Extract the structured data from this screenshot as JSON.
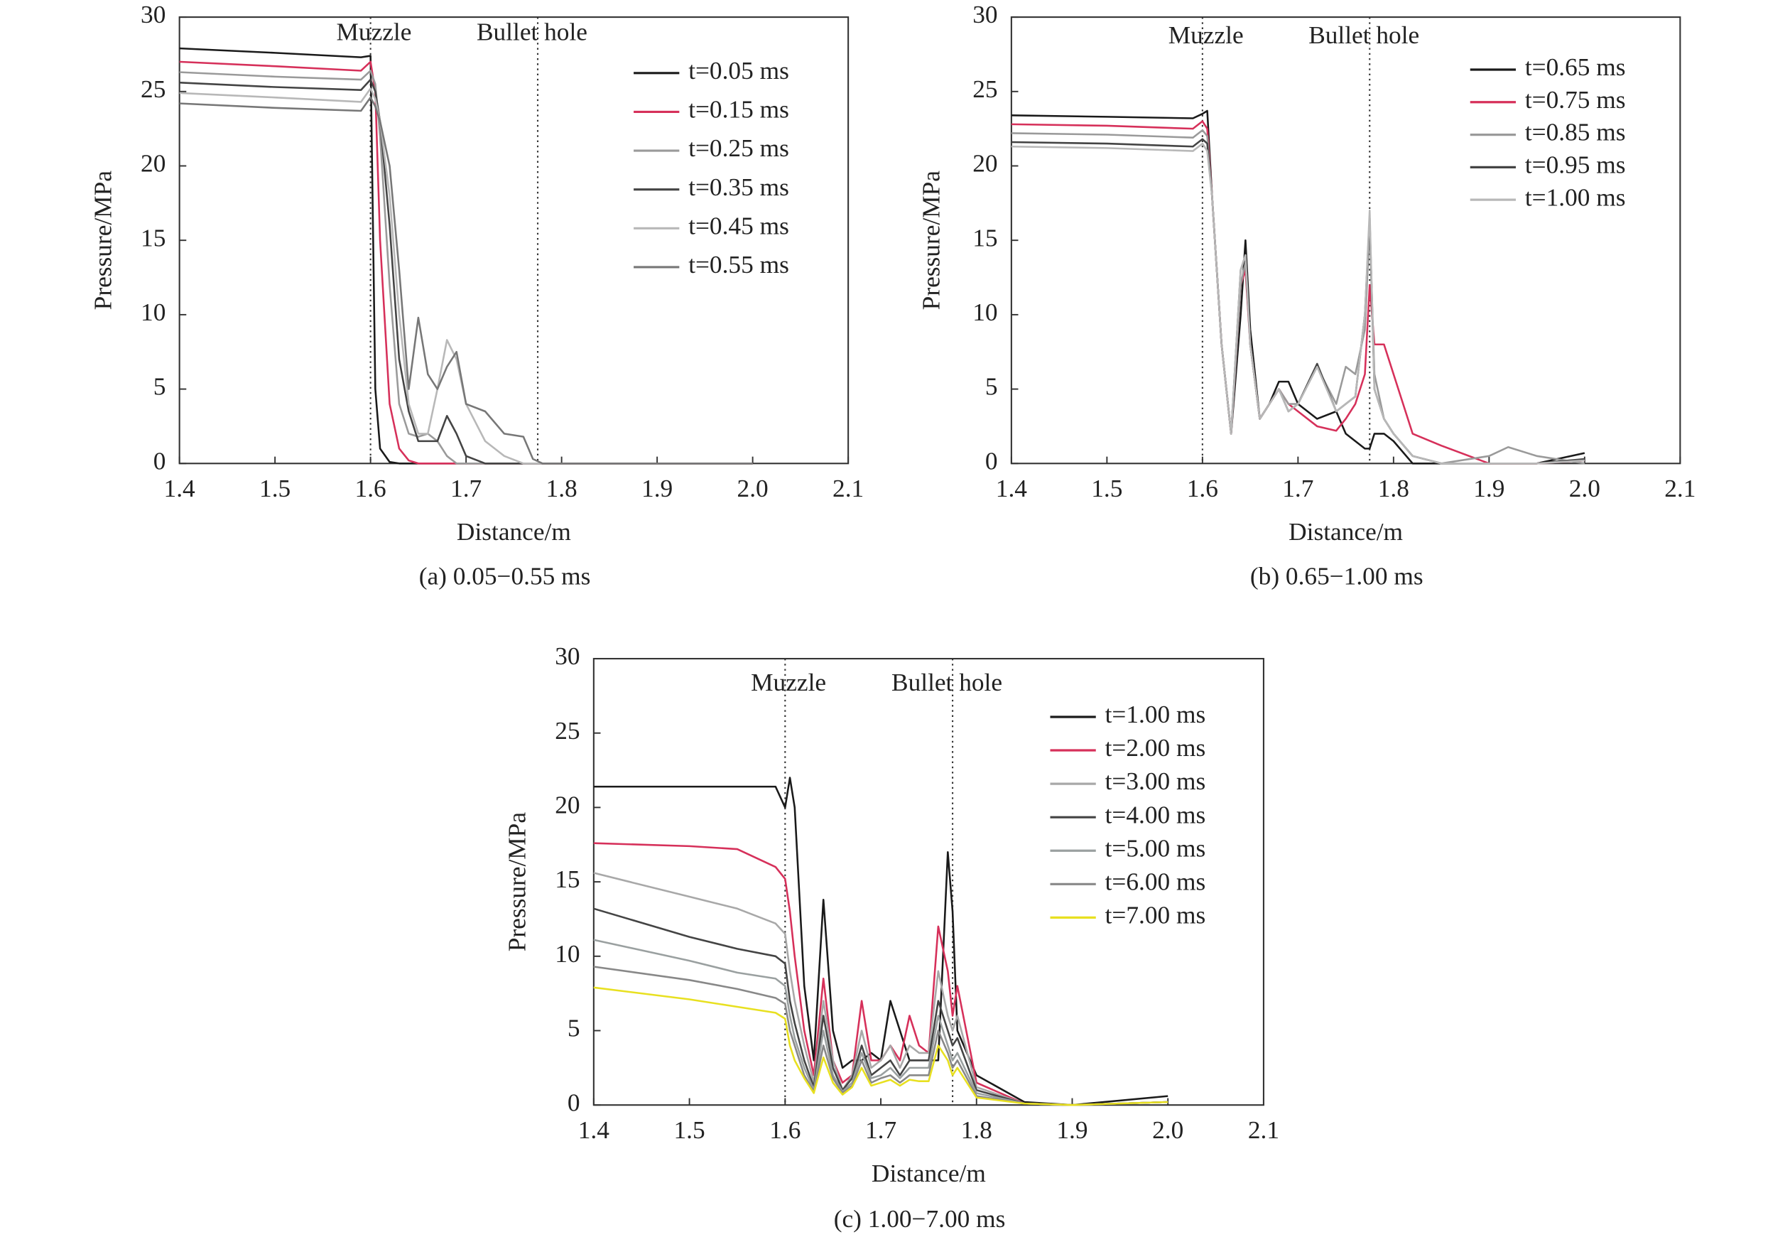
{
  "chart_data": [
    {
      "type": "line",
      "title": "(a) 0.05−0.55 ms",
      "xlabel": "Distance/m",
      "ylabel": "Pressure/MPa",
      "annotations": [
        {
          "text": "Muzzle",
          "x": 1.6
        },
        {
          "text": "Bullet hole",
          "x": 1.775
        }
      ],
      "xlim": [
        1.4,
        2.1
      ],
      "xticks": [
        1.4,
        1.5,
        1.6,
        1.7,
        1.8,
        1.9,
        {
          "value": 2,
          "label": "2.0"
        },
        2.1
      ],
      "ylim": [
        0,
        30
      ],
      "yticks": [
        0,
        5,
        10,
        15,
        20,
        25,
        30
      ],
      "legend": "upper right",
      "x": [
        1.4,
        1.5,
        1.59,
        1.6,
        1.605,
        1.61,
        1.62,
        1.63,
        1.64,
        1.65,
        1.66,
        1.67,
        1.68,
        1.69,
        1.7,
        1.72,
        1.74,
        1.76,
        1.77,
        1.78,
        1.9,
        2.0
      ],
      "series": [
        {
          "name": "t=0.05 ms",
          "color": "#1a1a1a",
          "values": [
            27.9,
            27.6,
            27.3,
            27.4,
            5,
            1,
            0.1,
            0,
            0,
            0,
            0,
            0,
            0,
            0,
            0,
            0,
            0,
            0,
            0,
            0,
            0,
            0
          ]
        },
        {
          "name": "t=0.15 ms",
          "color": "#d6305a",
          "values": [
            27.0,
            26.7,
            26.4,
            27.0,
            25,
            15,
            4,
            1,
            0.2,
            0,
            0,
            0,
            0,
            0,
            0,
            0,
            0,
            0,
            0,
            0,
            0,
            0
          ]
        },
        {
          "name": "t=0.25 ms",
          "color": "#9a9a9a",
          "values": [
            26.3,
            26.0,
            25.8,
            26.4,
            25.5,
            22,
            12,
            4,
            2,
            1.8,
            2,
            1.5,
            0.5,
            0,
            0,
            0,
            0,
            0,
            0,
            0,
            0,
            0
          ]
        },
        {
          "name": "t=0.35 ms",
          "color": "#444444",
          "values": [
            25.6,
            25.3,
            25.1,
            25.8,
            25,
            23,
            16,
            7,
            3.5,
            1.5,
            1.5,
            1.5,
            3.2,
            2,
            0.5,
            0,
            0,
            0,
            0,
            0,
            0,
            0
          ]
        },
        {
          "name": "t=0.45 ms",
          "color": "#b8b8b8",
          "values": [
            24.9,
            24.6,
            24.3,
            25.2,
            24.5,
            23,
            18,
            10,
            4,
            2,
            2,
            5,
            8.3,
            7,
            4,
            1.5,
            0.5,
            0,
            0,
            0,
            0,
            0
          ]
        },
        {
          "name": "t=0.55 ms",
          "color": "#777777",
          "values": [
            24.2,
            23.9,
            23.7,
            24.6,
            24,
            23,
            20,
            13,
            5,
            9.8,
            6,
            5,
            6.5,
            7.5,
            4,
            3.5,
            2,
            1.8,
            0.3,
            0,
            0,
            0
          ]
        }
      ]
    },
    {
      "type": "line",
      "title": "(b) 0.65−1.00 ms",
      "xlabel": "Distance/m",
      "ylabel": "Pressure/MPa",
      "annotations": [
        {
          "text": "Muzzle",
          "x": 1.6
        },
        {
          "text": "Bullet hole",
          "x": 1.775
        }
      ],
      "xlim": [
        1.4,
        2.1
      ],
      "xticks": [
        1.4,
        1.5,
        1.6,
        1.7,
        1.8,
        1.9,
        {
          "value": 2,
          "label": "2.0"
        },
        2.1
      ],
      "ylim": [
        0,
        30
      ],
      "yticks": [
        0,
        5,
        10,
        15,
        20,
        25,
        30
      ],
      "legend": "upper right",
      "x": [
        1.4,
        1.5,
        1.59,
        1.6,
        1.605,
        1.61,
        1.62,
        1.63,
        1.64,
        1.645,
        1.65,
        1.66,
        1.67,
        1.68,
        1.69,
        1.7,
        1.72,
        1.74,
        1.75,
        1.76,
        1.77,
        1.775,
        1.78,
        1.79,
        1.8,
        1.82,
        1.85,
        1.9,
        1.92,
        1.95,
        2.0
      ],
      "series": [
        {
          "name": "t=0.65 ms",
          "color": "#1a1a1a",
          "values": [
            23.4,
            23.3,
            23.2,
            23.5,
            23.7,
            18,
            8,
            2,
            10,
            15,
            9,
            3,
            4,
            5.5,
            5.5,
            4,
            3,
            3.5,
            2,
            1.5,
            1,
            1,
            2,
            2,
            1.5,
            0,
            0,
            0,
            0,
            0,
            0.7
          ]
        },
        {
          "name": "t=0.75 ms",
          "color": "#d6305a",
          "values": [
            22.8,
            22.7,
            22.5,
            23,
            22.5,
            18,
            8,
            2,
            12,
            13,
            8,
            3,
            4,
            5,
            4,
            3.5,
            2.5,
            2.2,
            3,
            4,
            6,
            12,
            8,
            8,
            6,
            2,
            1.2,
            0,
            0,
            0,
            0.2
          ]
        },
        {
          "name": "t=0.85 ms",
          "color": "#9a9a9a",
          "values": [
            22.2,
            22.1,
            21.9,
            22.4,
            22,
            18,
            8,
            2,
            12,
            13.5,
            8,
            3,
            4,
            5,
            4,
            4,
            6.5,
            4,
            6.5,
            6,
            9,
            16,
            6,
            3,
            2,
            0.5,
            0,
            0.5,
            1.1,
            0.5,
            0
          ]
        },
        {
          "name": "t=0.95 ms",
          "color": "#444444",
          "values": [
            21.6,
            21.5,
            21.3,
            21.8,
            21.5,
            18,
            8,
            2,
            13,
            14,
            8,
            3,
            4,
            5,
            3.5,
            4,
            6.7,
            3.5,
            4,
            4.5,
            10,
            16.5,
            5,
            3,
            2,
            0.5,
            0,
            0,
            0,
            0,
            0.3
          ]
        },
        {
          "name": "t=1.00 ms",
          "color": "#b8b8b8",
          "values": [
            21.3,
            21.2,
            21,
            21.5,
            21,
            18,
            8,
            2,
            13,
            14,
            8,
            3,
            4,
            5,
            3.5,
            4,
            6.5,
            3.5,
            4,
            4.5,
            10,
            17,
            5,
            3,
            2,
            0.5,
            0,
            0,
            0,
            0,
            0.2
          ]
        }
      ]
    },
    {
      "type": "line",
      "title": "(c) 1.00−7.00 ms",
      "xlabel": "Distance/m",
      "ylabel": "Pressure/MPa",
      "annotations": [
        {
          "text": "Muzzle",
          "x": 1.6
        },
        {
          "text": "Bullet hole",
          "x": 1.775
        }
      ],
      "xlim": [
        1.4,
        2.1
      ],
      "xticks": [
        1.4,
        1.5,
        1.6,
        1.7,
        1.8,
        1.9,
        {
          "value": 2,
          "label": "2.0"
        },
        2.1
      ],
      "ylim": [
        0,
        30
      ],
      "yticks": [
        0,
        5,
        10,
        15,
        20,
        25,
        30
      ],
      "legend": "upper right",
      "x": [
        1.4,
        1.5,
        1.55,
        1.59,
        1.6,
        1.605,
        1.61,
        1.62,
        1.63,
        1.64,
        1.65,
        1.66,
        1.67,
        1.68,
        1.69,
        1.7,
        1.71,
        1.72,
        1.73,
        1.74,
        1.75,
        1.76,
        1.77,
        1.775,
        1.78,
        1.8,
        1.85,
        1.9,
        2.0
      ],
      "series": [
        {
          "name": "t=1.00 ms",
          "color": "#1a1a1a",
          "values": [
            21.4,
            21.4,
            21.4,
            21.4,
            20,
            22,
            20,
            8,
            3,
            13.8,
            5,
            2.5,
            3,
            3,
            3.5,
            3,
            7,
            5,
            3,
            3,
            3,
            3,
            17,
            13,
            5,
            2,
            0.2,
            0,
            0.6
          ]
        },
        {
          "name": "t=2.00 ms",
          "color": "#d6305a",
          "values": [
            17.6,
            17.4,
            17.2,
            16,
            15.2,
            13,
            10,
            5,
            2,
            8.5,
            3,
            1.5,
            2,
            7,
            3,
            3,
            4,
            3,
            6,
            4,
            3.5,
            12,
            9,
            6,
            8,
            1.5,
            0.1,
            0,
            0.2
          ]
        },
        {
          "name": "t=3.00 ms",
          "color": "#a8a8a8",
          "values": [
            15.6,
            14,
            13.2,
            12.2,
            11.5,
            9,
            7,
            4,
            1.5,
            7,
            3,
            1,
            2,
            5,
            2.5,
            3,
            4,
            2.5,
            4,
            3.5,
            3.5,
            9,
            6,
            5,
            6,
            1.2,
            0.1,
            0,
            0.2
          ]
        },
        {
          "name": "t=4.00 ms",
          "color": "#444444",
          "values": [
            13.2,
            11.3,
            10.5,
            10,
            9.5,
            7,
            5.5,
            3,
            1.2,
            6,
            2.5,
            1,
            1.8,
            4,
            2,
            2.5,
            3,
            2,
            3,
            3,
            3,
            7,
            5,
            4,
            4.5,
            1,
            0.1,
            0,
            0.2
          ]
        },
        {
          "name": "t=5.00 ms",
          "color": "#9aa0a0",
          "values": [
            11.1,
            9.7,
            8.9,
            8.5,
            8,
            6,
            4.5,
            2.5,
            1,
            5,
            2,
            0.9,
            1.5,
            3.5,
            1.8,
            2,
            2.5,
            1.8,
            2.5,
            2.5,
            2.5,
            6,
            4,
            3,
            3.5,
            0.8,
            0.1,
            0,
            0.2
          ]
        },
        {
          "name": "t=6.00 ms",
          "color": "#888888",
          "values": [
            9.3,
            8.4,
            7.8,
            7.2,
            6.8,
            5,
            4,
            2,
            0.9,
            4,
            1.8,
            0.8,
            1.3,
            3,
            1.5,
            1.8,
            2,
            1.5,
            2,
            2,
            2,
            5,
            3.5,
            2.5,
            3,
            0.6,
            0.1,
            0,
            0.2
          ]
        },
        {
          "name": "t=7.00 ms",
          "color": "#e8e020",
          "values": [
            7.9,
            7.1,
            6.6,
            6.2,
            5.8,
            4,
            3,
            1.8,
            0.8,
            3.2,
            1.5,
            0.7,
            1.2,
            2.5,
            1.3,
            1.5,
            1.7,
            1.3,
            1.7,
            1.6,
            1.6,
            4,
            3,
            2,
            2.5,
            0.5,
            0.1,
            0,
            0.2
          ]
        }
      ]
    }
  ]
}
